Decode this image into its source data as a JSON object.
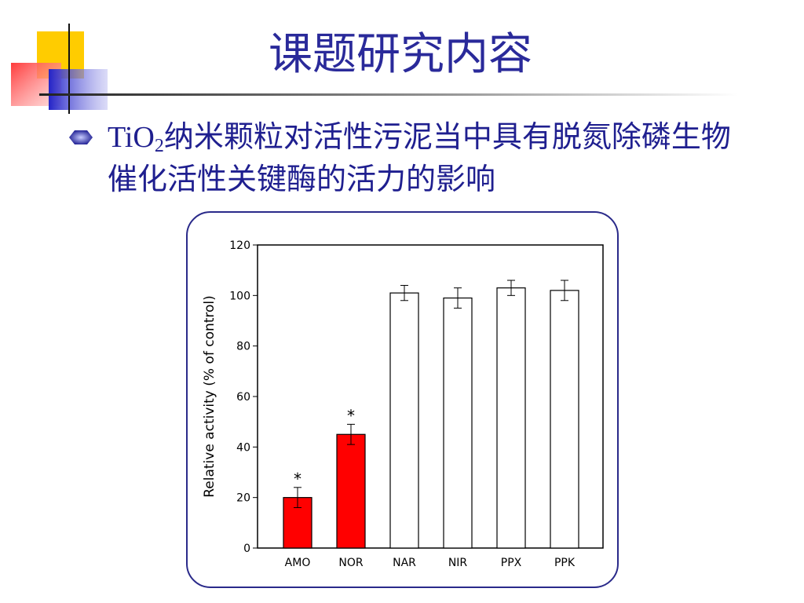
{
  "slide": {
    "title": "课题研究内容",
    "bullet": [
      "TiO",
      "2",
      "纳米颗粒对活性污泥当中具有脱氮除磷生物催化活性关键酶的活力的影响"
    ]
  },
  "chart_data": {
    "type": "bar",
    "ylabel": "Relative activity (% of control)",
    "categories": [
      "AMO",
      "NOR",
      "NAR",
      "NIR",
      "PPX",
      "PPK"
    ],
    "values": [
      20,
      45,
      101,
      99,
      103,
      102
    ],
    "errors": [
      4,
      4,
      3,
      4,
      3,
      4
    ],
    "colors": [
      "#ff0000",
      "#ff0000",
      "#ffffff",
      "#ffffff",
      "#ffffff",
      "#ffffff"
    ],
    "annotations": [
      "*",
      "*",
      null,
      null,
      null,
      null
    ],
    "ylim": [
      0,
      120
    ],
    "yticks": [
      0,
      20,
      40,
      60,
      80,
      100,
      120
    ]
  }
}
